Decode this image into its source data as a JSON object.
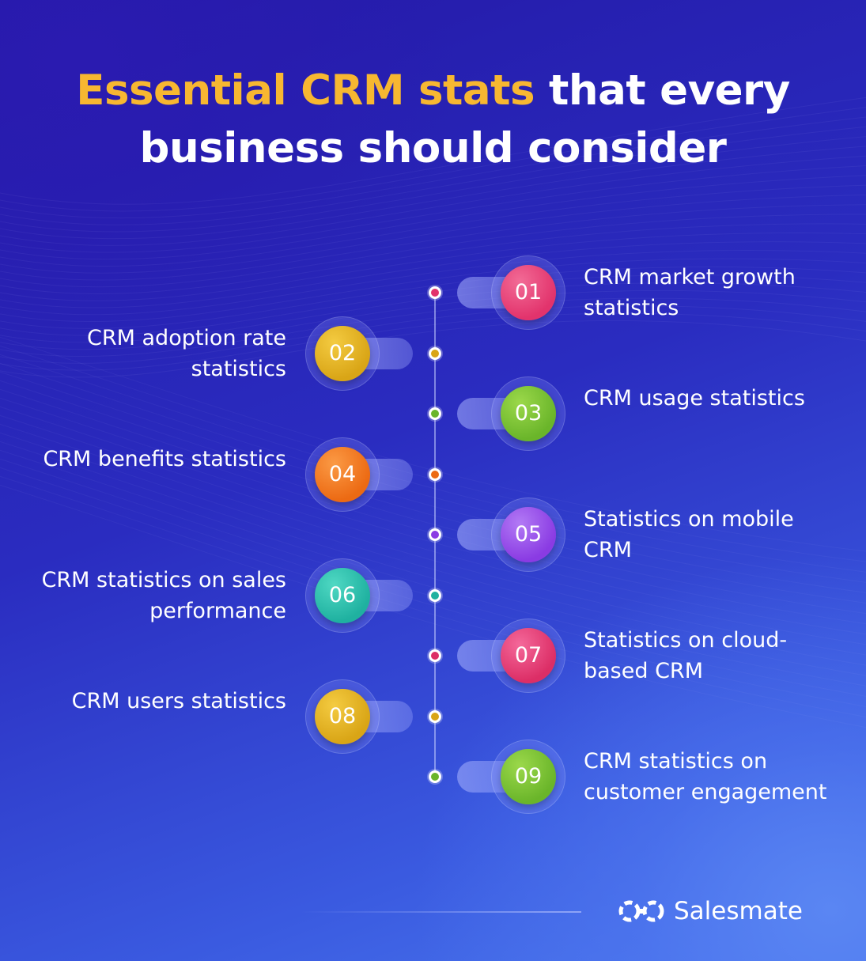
{
  "title": {
    "highlight": "Essential CRM stats",
    "rest_line1": " that every",
    "line2": "business should consider"
  },
  "items": [
    {
      "number": "01",
      "label": "CRM market growth statistics",
      "side": "right",
      "color": "#e2336c",
      "color_light": "#f26b96"
    },
    {
      "number": "02",
      "label": "CRM adoption rate statistics",
      "side": "left",
      "color": "#d9a516",
      "color_light": "#f4cb41"
    },
    {
      "number": "03",
      "label": "CRM usage statistics",
      "side": "right",
      "color": "#6ab52a",
      "color_light": "#9bd84a"
    },
    {
      "number": "04",
      "label": "CRM benefits statistics",
      "side": "left",
      "color": "#ec6a13",
      "color_light": "#fb9a45"
    },
    {
      "number": "05",
      "label": "Statistics on mobile CRM",
      "side": "right",
      "color": "#8a3be3",
      "color_light": "#b27af5"
    },
    {
      "number": "06",
      "label": "CRM statistics on sales performance",
      "side": "left",
      "color": "#1fb1a0",
      "color_light": "#4fd8c3"
    },
    {
      "number": "07",
      "label": "Statistics on cloud-based CRM",
      "side": "right",
      "color": "#dc2e66",
      "color_light": "#f4689a"
    },
    {
      "number": "08",
      "label": "CRM users statistics",
      "side": "left",
      "color": "#d9a516",
      "color_light": "#f4cb41"
    },
    {
      "number": "09",
      "label": "CRM statistics on customer engagement",
      "side": "right",
      "color": "#6ab52a",
      "color_light": "#9bd84a"
    }
  ],
  "brand": {
    "name": "Salesmate",
    "icon": "salesmate-logo-icon"
  }
}
